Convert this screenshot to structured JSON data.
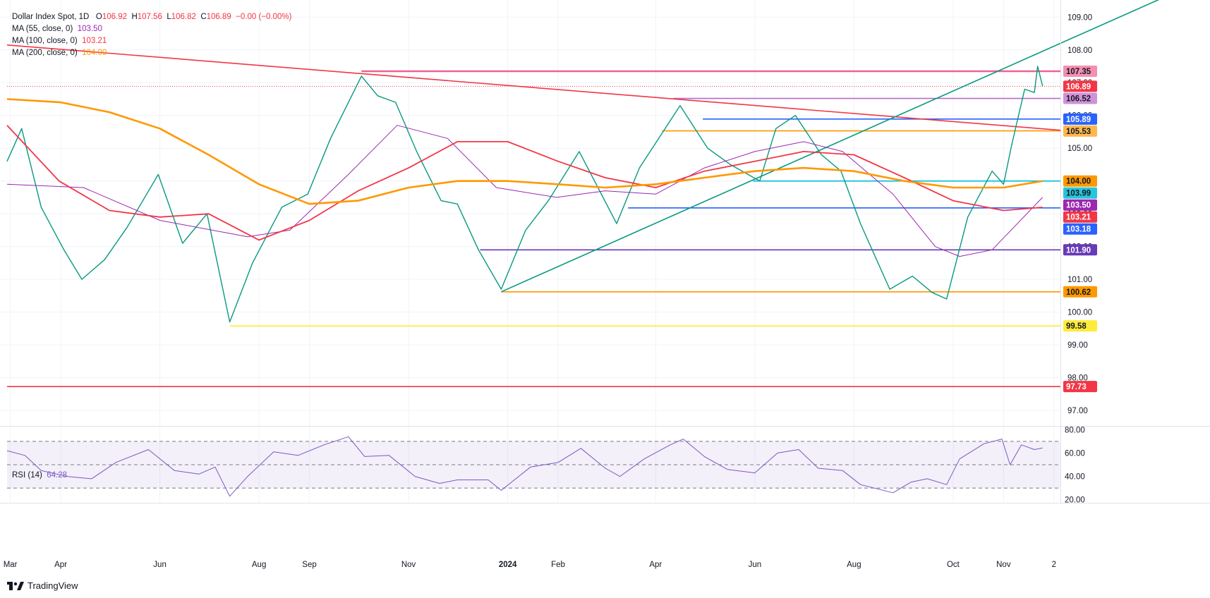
{
  "header": {
    "symbol": "Dollar Index Spot, 1D",
    "o_label": "O",
    "o": "106.92",
    "h_label": "H",
    "h": "107.56",
    "l_label": "L",
    "l": "106.82",
    "c_label": "C",
    "c": "106.89",
    "change": "−0.00 (−0.00%)"
  },
  "indicators": [
    {
      "label": "MA (55, close, 0)",
      "value": "103.50",
      "color": "#9c27b0"
    },
    {
      "label": "MA (100, close, 0)",
      "value": "103.21",
      "color": "#f23645"
    },
    {
      "label": "MA (200, close, 0)",
      "value": "104.00",
      "color": "#ff9800"
    }
  ],
  "rsi": {
    "label": "RSI (14)",
    "value": "64.28",
    "color": "#7e57c2"
  },
  "brand": "TradingView",
  "chart_data": {
    "type": "line",
    "title": "Dollar Index Spot, 1D",
    "price_axis": {
      "ylim": [
        96.55,
        109.35
      ],
      "ticks": [
        "109.00",
        "108.00",
        "107.00",
        "106.00",
        "105.00",
        "104.00",
        "103.00",
        "102.00",
        "101.00",
        "100.00",
        "99.00",
        "98.00",
        "97.00"
      ]
    },
    "time_axis": {
      "labels": [
        {
          "label": "Mar",
          "date": "2023-03-01"
        },
        {
          "label": "Apr",
          "date": "2023-04-01"
        },
        {
          "label": "Jun",
          "date": "2023-06-01"
        },
        {
          "label": "Aug",
          "date": "2023-08-01"
        },
        {
          "label": "Sep",
          "date": "2023-09-01"
        },
        {
          "label": "Nov",
          "date": "2023-11-01"
        },
        {
          "label": "2024",
          "date": "2024-01-01"
        },
        {
          "label": "Feb",
          "date": "2024-02-01"
        },
        {
          "label": "Apr",
          "date": "2024-04-01"
        },
        {
          "label": "Jun",
          "date": "2024-06-01"
        },
        {
          "label": "Aug",
          "date": "2024-08-01"
        },
        {
          "label": "Oct",
          "date": "2024-10-01"
        },
        {
          "label": "Nov",
          "date": "2024-11-01"
        },
        {
          "label": "2",
          "date": "2024-12-02"
        }
      ],
      "range": [
        "2023-02-27",
        "2024-12-06"
      ]
    },
    "series": [
      {
        "name": "Dollar Index Spot",
        "color": "#089981",
        "points": [
          [
            "2023-02-27",
            104.6
          ],
          [
            "2023-03-08",
            105.6
          ],
          [
            "2023-03-20",
            103.2
          ],
          [
            "2023-04-03",
            101.9
          ],
          [
            "2023-04-14",
            101.0
          ],
          [
            "2023-04-28",
            101.6
          ],
          [
            "2023-05-12",
            102.6
          ],
          [
            "2023-05-31",
            104.2
          ],
          [
            "2023-06-15",
            102.1
          ],
          [
            "2023-06-30",
            103.0
          ],
          [
            "2023-07-14",
            99.7
          ],
          [
            "2023-07-28",
            101.5
          ],
          [
            "2023-08-15",
            103.2
          ],
          [
            "2023-08-31",
            103.6
          ],
          [
            "2023-09-14",
            105.3
          ],
          [
            "2023-10-03",
            107.2
          ],
          [
            "2023-10-13",
            106.6
          ],
          [
            "2023-10-24",
            106.4
          ],
          [
            "2023-11-06",
            104.9
          ],
          [
            "2023-11-21",
            103.4
          ],
          [
            "2023-12-01",
            103.3
          ],
          [
            "2023-12-14",
            101.9
          ],
          [
            "2023-12-28",
            100.7
          ],
          [
            "2024-01-12",
            102.5
          ],
          [
            "2024-01-26",
            103.4
          ],
          [
            "2024-02-14",
            104.9
          ],
          [
            "2024-03-08",
            102.7
          ],
          [
            "2024-03-22",
            104.4
          ],
          [
            "2024-04-16",
            106.3
          ],
          [
            "2024-05-03",
            105.0
          ],
          [
            "2024-05-17",
            104.5
          ],
          [
            "2024-06-04",
            104.0
          ],
          [
            "2024-06-14",
            105.6
          ],
          [
            "2024-06-26",
            106.0
          ],
          [
            "2024-07-12",
            104.8
          ],
          [
            "2024-07-24",
            104.3
          ],
          [
            "2024-08-05",
            102.7
          ],
          [
            "2024-08-23",
            100.7
          ],
          [
            "2024-09-06",
            101.1
          ],
          [
            "2024-09-18",
            100.6
          ],
          [
            "2024-09-27",
            100.4
          ],
          [
            "2024-10-10",
            102.9
          ],
          [
            "2024-10-25",
            104.3
          ],
          [
            "2024-11-01",
            103.9
          ],
          [
            "2024-11-06",
            105.1
          ],
          [
            "2024-11-14",
            106.8
          ],
          [
            "2024-11-20",
            106.7
          ],
          [
            "2024-11-22",
            107.5
          ],
          [
            "2024-11-25",
            106.9
          ]
        ]
      },
      {
        "name": "MA (55, close, 0)",
        "color": "#9c27b0",
        "points": [
          [
            "2023-02-27",
            103.9
          ],
          [
            "2023-04-15",
            103.8
          ],
          [
            "2023-06-01",
            102.8
          ],
          [
            "2023-07-25",
            102.3
          ],
          [
            "2023-08-20",
            102.5
          ],
          [
            "2023-09-25",
            104.2
          ],
          [
            "2023-10-25",
            105.7
          ],
          [
            "2023-11-25",
            105.3
          ],
          [
            "2023-12-25",
            103.8
          ],
          [
            "2024-01-31",
            103.5
          ],
          [
            "2024-03-01",
            103.7
          ],
          [
            "2024-04-01",
            103.6
          ],
          [
            "2024-05-01",
            104.4
          ],
          [
            "2024-06-01",
            104.9
          ],
          [
            "2024-07-01",
            105.2
          ],
          [
            "2024-07-25",
            104.9
          ],
          [
            "2024-08-25",
            103.6
          ],
          [
            "2024-09-20",
            102.0
          ],
          [
            "2024-10-05",
            101.7
          ],
          [
            "2024-10-25",
            101.9
          ],
          [
            "2024-11-25",
            103.5
          ]
        ]
      },
      {
        "name": "MA (100, close, 0)",
        "color": "#f23645",
        "points": [
          [
            "2023-02-27",
            105.7
          ],
          [
            "2023-03-31",
            104.0
          ],
          [
            "2023-05-01",
            103.1
          ],
          [
            "2023-06-01",
            102.9
          ],
          [
            "2023-07-01",
            103.0
          ],
          [
            "2023-08-01",
            102.2
          ],
          [
            "2023-09-01",
            102.8
          ],
          [
            "2023-10-01",
            103.7
          ],
          [
            "2023-11-01",
            104.4
          ],
          [
            "2023-12-01",
            105.2
          ],
          [
            "2024-01-01",
            105.2
          ],
          [
            "2024-02-01",
            104.6
          ],
          [
            "2024-03-01",
            104.1
          ],
          [
            "2024-04-01",
            103.8
          ],
          [
            "2024-05-01",
            104.3
          ],
          [
            "2024-06-01",
            104.6
          ],
          [
            "2024-07-01",
            104.9
          ],
          [
            "2024-08-01",
            104.8
          ],
          [
            "2024-09-01",
            104.1
          ],
          [
            "2024-10-01",
            103.4
          ],
          [
            "2024-11-01",
            103.1
          ],
          [
            "2024-11-25",
            103.2
          ]
        ]
      },
      {
        "name": "MA (200, close, 0)",
        "color": "#ff9800",
        "points": [
          [
            "2023-02-27",
            106.5
          ],
          [
            "2023-04-01",
            106.4
          ],
          [
            "2023-05-01",
            106.1
          ],
          [
            "2023-06-01",
            105.6
          ],
          [
            "2023-07-01",
            104.8
          ],
          [
            "2023-08-01",
            103.9
          ],
          [
            "2023-09-01",
            103.3
          ],
          [
            "2023-10-01",
            103.4
          ],
          [
            "2023-11-01",
            103.8
          ],
          [
            "2023-12-01",
            104.0
          ],
          [
            "2024-01-01",
            104.0
          ],
          [
            "2024-02-01",
            103.9
          ],
          [
            "2024-03-01",
            103.8
          ],
          [
            "2024-04-01",
            103.9
          ],
          [
            "2024-05-01",
            104.1
          ],
          [
            "2024-06-01",
            104.3
          ],
          [
            "2024-07-01",
            104.4
          ],
          [
            "2024-08-01",
            104.3
          ],
          [
            "2024-09-01",
            104.0
          ],
          [
            "2024-10-01",
            103.8
          ],
          [
            "2024-11-01",
            103.8
          ],
          [
            "2024-11-25",
            104.0
          ]
        ]
      },
      {
        "name": "RSI (14)",
        "color": "#7e57c2",
        "points": [
          [
            "2023-02-27",
            62
          ],
          [
            "2023-03-10",
            58
          ],
          [
            "2023-03-20",
            45
          ],
          [
            "2023-04-05",
            40
          ],
          [
            "2023-04-20",
            38
          ],
          [
            "2023-05-05",
            52
          ],
          [
            "2023-05-25",
            63
          ],
          [
            "2023-06-10",
            45
          ],
          [
            "2023-06-25",
            42
          ],
          [
            "2023-07-05",
            48
          ],
          [
            "2023-07-14",
            23
          ],
          [
            "2023-07-25",
            40
          ],
          [
            "2023-08-10",
            61
          ],
          [
            "2023-08-25",
            58
          ],
          [
            "2023-09-10",
            67
          ],
          [
            "2023-09-25",
            74
          ],
          [
            "2023-10-05",
            57
          ],
          [
            "2023-10-20",
            58
          ],
          [
            "2023-11-05",
            40
          ],
          [
            "2023-11-20",
            34
          ],
          [
            "2023-12-01",
            37
          ],
          [
            "2023-12-20",
            37
          ],
          [
            "2023-12-28",
            28
          ],
          [
            "2024-01-15",
            48
          ],
          [
            "2024-02-01",
            52
          ],
          [
            "2024-02-15",
            64
          ],
          [
            "2024-03-01",
            47
          ],
          [
            "2024-03-10",
            40
          ],
          [
            "2024-03-25",
            55
          ],
          [
            "2024-04-10",
            67
          ],
          [
            "2024-04-18",
            72
          ],
          [
            "2024-05-01",
            57
          ],
          [
            "2024-05-15",
            46
          ],
          [
            "2024-06-01",
            43
          ],
          [
            "2024-06-15",
            60
          ],
          [
            "2024-06-28",
            63
          ],
          [
            "2024-07-10",
            47
          ],
          [
            "2024-07-25",
            45
          ],
          [
            "2024-08-05",
            33
          ],
          [
            "2024-08-25",
            26
          ],
          [
            "2024-09-05",
            35
          ],
          [
            "2024-09-15",
            38
          ],
          [
            "2024-09-27",
            33
          ],
          [
            "2024-10-05",
            55
          ],
          [
            "2024-10-20",
            68
          ],
          [
            "2024-10-31",
            72
          ],
          [
            "2024-11-05",
            50
          ],
          [
            "2024-11-12",
            67
          ],
          [
            "2024-11-20",
            63
          ],
          [
            "2024-11-25",
            64.28
          ]
        ]
      }
    ],
    "trendlines": [
      {
        "name": "descending-red",
        "color": "#f23645",
        "from": [
          "2023-02-27",
          108.15
        ],
        "to": [
          "2024-12-06",
          105.55
        ]
      },
      {
        "name": "ascending-green",
        "color": "#089981",
        "from": [
          "2023-12-28",
          100.62
        ],
        "to": [
          "2024-12-06",
          108.2
        ]
      }
    ],
    "levels": [
      {
        "value": 107.35,
        "label": "107.35",
        "color": "#f06292",
        "from": "2023-10-03"
      },
      {
        "value": 106.89,
        "label": "106.89",
        "color": "#f23645",
        "from": "2023-02-27",
        "dotted": true
      },
      {
        "value": 106.52,
        "label": "106.52",
        "color": "#ba68c8",
        "from": "2024-04-12"
      },
      {
        "value": 105.89,
        "label": "105.89",
        "color": "#2962ff",
        "from": "2024-04-30"
      },
      {
        "value": 105.53,
        "label": "105.53",
        "color": "#ff9800",
        "from": "2024-04-05"
      },
      {
        "value": 104.0,
        "label": "104.00",
        "color": "#00bcd4",
        "from": "2024-05-31"
      },
      {
        "value": 103.18,
        "label": "103.18",
        "color": "#2962ff",
        "from": "2024-03-15"
      },
      {
        "value": 101.9,
        "label": "101.90",
        "color": "#673ab7",
        "from": "2023-12-15"
      },
      {
        "value": 100.62,
        "label": "100.62",
        "color": "#ff9800",
        "from": "2023-12-28"
      },
      {
        "value": 99.58,
        "label": "99.58",
        "color": "#ffeb3b",
        "from": "2023-07-14"
      },
      {
        "value": 97.73,
        "label": "97.73",
        "color": "#f23645",
        "from": "2023-02-27"
      }
    ],
    "price_tags": [
      {
        "value": 107.35,
        "label": "107.35",
        "bg": "#f48fb1",
        "fg": "#131722"
      },
      {
        "value": 106.89,
        "label": "106.89",
        "bg": "#f23645",
        "fg": "#ffffff"
      },
      {
        "value": 106.52,
        "label": "106.52",
        "bg": "#ce93d8",
        "fg": "#131722"
      },
      {
        "value": 105.89,
        "label": "105.89",
        "bg": "#2962ff",
        "fg": "#ffffff"
      },
      {
        "value": 105.53,
        "label": "105.53",
        "bg": "#ffb74d",
        "fg": "#131722"
      },
      {
        "value": 104.0,
        "label": "104.00",
        "bg": "#ff9800",
        "fg": "#131722"
      },
      {
        "value": 103.99,
        "label": "103.99",
        "bg": "#26c6da",
        "fg": "#131722"
      },
      {
        "value": 103.5,
        "label": "103.50",
        "bg": "#9c27b0",
        "fg": "#ffffff"
      },
      {
        "value": 103.21,
        "label": "103.21",
        "bg": "#f23645",
        "fg": "#ffffff"
      },
      {
        "value": 103.18,
        "label": "103.18",
        "bg": "#2962ff",
        "fg": "#ffffff"
      },
      {
        "value": 101.9,
        "label": "101.90",
        "bg": "#673ab7",
        "fg": "#ffffff"
      },
      {
        "value": 100.62,
        "label": "100.62",
        "bg": "#ff9800",
        "fg": "#131722"
      },
      {
        "value": 99.58,
        "label": "99.58",
        "bg": "#ffeb3b",
        "fg": "#131722"
      },
      {
        "value": 97.73,
        "label": "97.73",
        "bg": "#f23645",
        "fg": "#ffffff"
      }
    ],
    "rsi_axis": {
      "ylim": [
        18,
        82
      ],
      "ticks": [
        "80.00",
        "60.00",
        "40.00",
        "20.00"
      ],
      "bands": [
        70,
        50,
        30
      ]
    },
    "grid": true,
    "legend": "top-left"
  }
}
